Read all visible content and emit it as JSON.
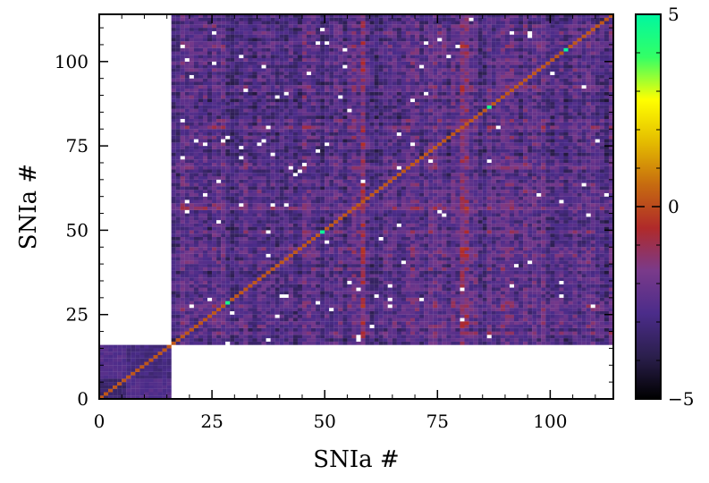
{
  "chart_data": {
    "type": "heatmap",
    "title": "",
    "xlabel": "SNIa #",
    "ylabel": "SNIa #",
    "xlim": [
      0,
      114
    ],
    "ylim": [
      0,
      114
    ],
    "x_ticks": [
      "0",
      "25",
      "50",
      "75",
      "100"
    ],
    "y_ticks": [
      "0",
      "25",
      "50",
      "75",
      "100"
    ],
    "n_sne": 114,
    "low_z_block_size": 16,
    "empty_regions": [
      "top-left (rows 16-114, cols 0-16)",
      "bottom-right (rows 0-16, cols 16-114)"
    ],
    "diagonal_band_value": 0.2,
    "notable_diagonal_values": [
      {
        "index": 28,
        "value": 4.5
      },
      {
        "index": 49,
        "value": 4.8
      },
      {
        "index": 86,
        "value": 4.6
      },
      {
        "index": 103,
        "value": 4.8
      }
    ],
    "colorbar": {
      "min": -5,
      "max": 5,
      "ticks": [
        "−5",
        "0",
        "5"
      ],
      "colormap_stops": [
        "#000000",
        "#2b1f4d",
        "#4b2c8a",
        "#7a3a8a",
        "#b02a2a",
        "#c66a10",
        "#e4bb00",
        "#ffff00",
        "#33ff66",
        "#00f7a0"
      ]
    }
  }
}
